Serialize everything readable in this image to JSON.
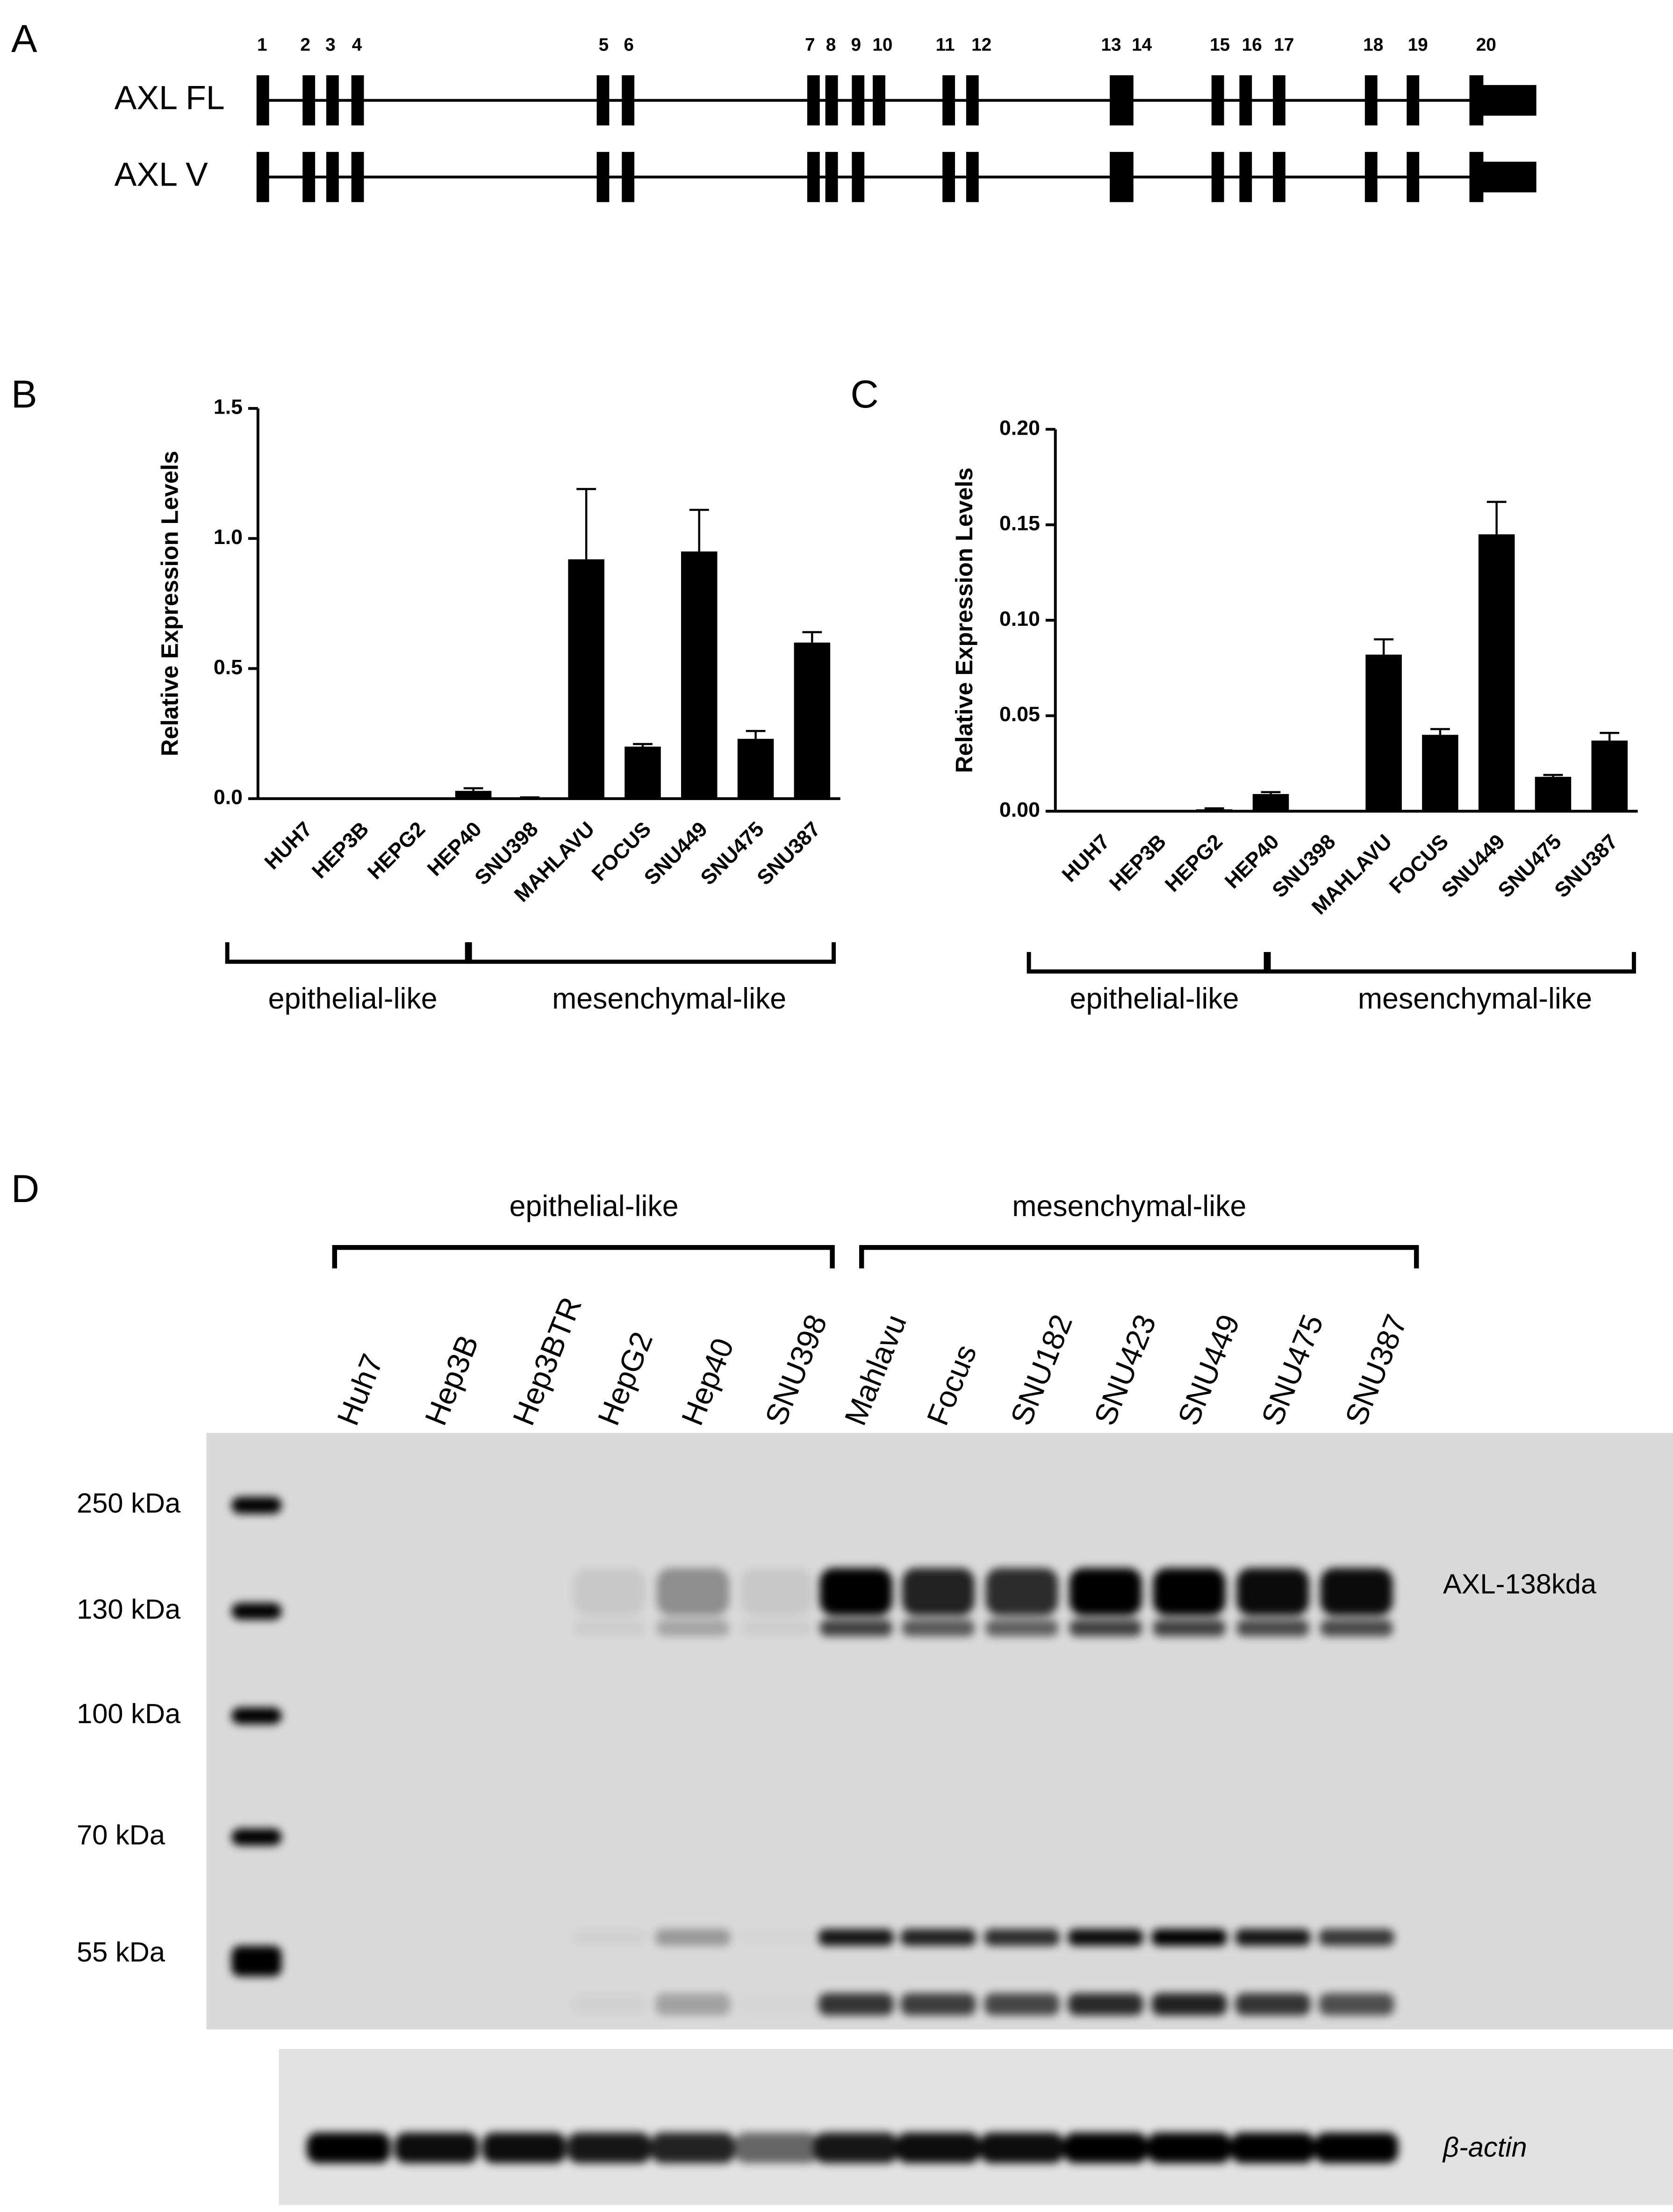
{
  "panel_labels": [
    "A",
    "B",
    "C",
    "D"
  ],
  "panel_a": {
    "exon_numbers": [
      "1",
      "2",
      "3",
      "4",
      "5",
      "6",
      "7",
      "8",
      "9",
      "10",
      "11",
      "12",
      "13",
      "14",
      "15",
      "16",
      "17",
      "18",
      "19",
      "20"
    ],
    "transcripts": [
      "AXL FL",
      "AXL V"
    ]
  },
  "chart_data": [
    {
      "type": "bar",
      "y_label": "Relative Expression Levels",
      "categories": [
        "HUH7",
        "HEP3B",
        "HEPG2",
        "HEP40",
        "SNU398",
        "MAHLAVU",
        "FOCUS",
        "SNU449",
        "SNU475",
        "SNU387"
      ],
      "values": [
        0,
        0,
        0,
        0.03,
        0.005,
        0.92,
        0.2,
        0.95,
        0.23,
        0.6
      ],
      "errors": [
        0,
        0,
        0,
        0.01,
        0,
        0.27,
        0.01,
        0.16,
        0.03,
        0.04
      ],
      "color": "#000000",
      "ylim": [
        0,
        1.5
      ],
      "yticks": [
        {
          "value": 0,
          "label": "0.0"
        },
        0.5,
        {
          "value": 1,
          "label": "1.0"
        },
        1.5
      ],
      "groups": [
        "epithelial-like",
        "mesenchymal-like"
      ]
    },
    {
      "type": "bar",
      "y_label": "Relative Expression Levels",
      "categories": [
        "HUH7",
        "HEP3B",
        "HEPG2",
        "HEP40",
        "SNU398",
        "MAHLAVU",
        "FOCUS",
        "SNU449",
        "SNU475",
        "SNU387"
      ],
      "values": [
        0,
        0,
        0.001,
        0.009,
        0,
        0.082,
        0.04,
        0.145,
        0.018,
        0.037
      ],
      "errors": [
        0,
        0,
        0.0005,
        0.001,
        0,
        0.008,
        0.003,
        0.017,
        0.001,
        0.004
      ],
      "color": "#000000",
      "ylim": [
        0,
        0.2
      ],
      "yticks": [
        {
          "value": 0,
          "label": "0.00"
        },
        {
          "value": 0.05,
          "label": "0.05"
        },
        {
          "value": 0.1,
          "label": "0.10"
        },
        {
          "value": 0.15,
          "label": "0.15"
        },
        {
          "value": 0.2,
          "label": "0.20"
        }
      ],
      "groups": [
        "epithelial-like",
        "mesenchymal-like"
      ]
    }
  ],
  "panel_d": {
    "groups": [
      "epithelial-like",
      "mesenchymal-like"
    ],
    "lanes": [
      "Huh7",
      "Hep3B",
      "Hep3BTR",
      "HepG2",
      "Hep40",
      "SNU398",
      "Mahlavu",
      "Focus",
      "SNU182",
      "SNU423",
      "SNU449",
      "SNU475",
      "SNU387"
    ],
    "markers": [
      "250 kDa",
      "130 kDa",
      "100 kDa",
      "70 kDa",
      "55 kDa"
    ],
    "band_label": "AXL-138kda",
    "loading_label": "β-actin"
  }
}
